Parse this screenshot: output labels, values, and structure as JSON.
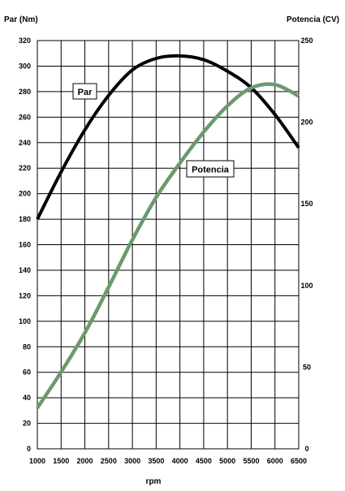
{
  "chart_data": {
    "type": "line",
    "xlabel": "rpm",
    "y_left_label": "Par (Nm)",
    "y_right_label": "Potencia (CV)",
    "x_ticks": [
      1000,
      1500,
      2000,
      2500,
      3000,
      3500,
      4000,
      4500,
      5000,
      5500,
      6000,
      6500
    ],
    "y_left_ticks": [
      0,
      20,
      40,
      60,
      80,
      100,
      120,
      140,
      160,
      180,
      200,
      220,
      240,
      260,
      280,
      300,
      320
    ],
    "y_right_ticks": [
      0,
      50,
      100,
      150,
      200,
      250
    ],
    "xlim": [
      1000,
      6500
    ],
    "y_left_lim": [
      0,
      320
    ],
    "y_right_lim": [
      0,
      250
    ],
    "grid": true,
    "series": [
      {
        "name": "Par",
        "axis": "left",
        "color": "#000000",
        "x": [
          1000,
          1500,
          2000,
          2500,
          3000,
          3500,
          4000,
          4500,
          5000,
          5500,
          6000,
          6500
        ],
        "values": [
          180,
          217,
          250,
          277,
          297,
          306,
          308,
          305,
          296,
          283,
          262,
          236
        ]
      },
      {
        "name": "Potencia",
        "axis": "right",
        "color": "#6a9a6e",
        "x": [
          1000,
          1500,
          2000,
          2500,
          3000,
          3500,
          4000,
          4500,
          5000,
          5500,
          6000,
          6500
        ],
        "values": [
          25,
          47,
          71,
          99,
          128,
          154,
          175,
          194,
          210,
          221,
          223,
          216
        ]
      }
    ],
    "annotations": [
      {
        "text": "Par",
        "series": "Par"
      },
      {
        "text": "Potencia",
        "series": "Potencia"
      }
    ]
  }
}
